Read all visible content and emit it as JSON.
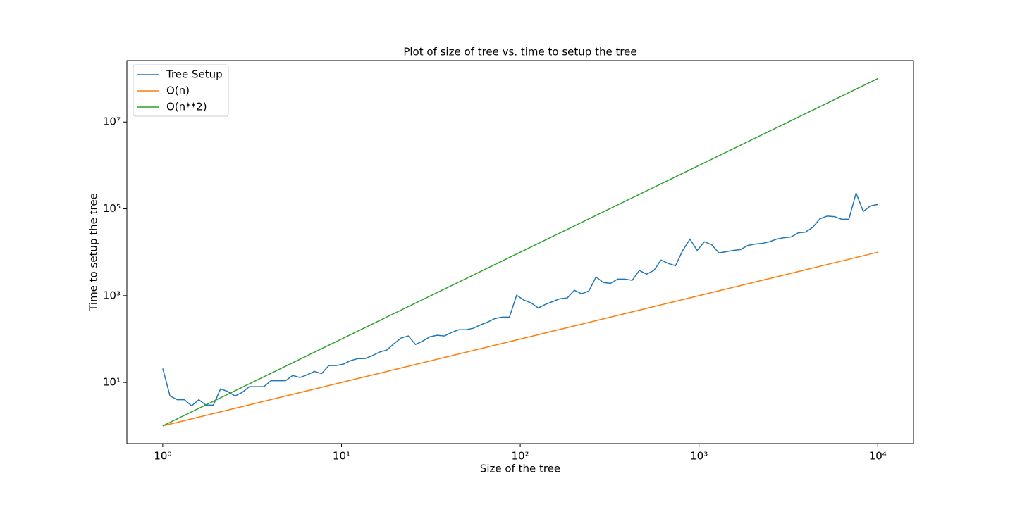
{
  "chart_data": {
    "type": "line",
    "title": "Plot of size of tree vs. time to setup the tree",
    "x_label": "Size of the tree",
    "y_label": "Time to setup the tree",
    "x_scale": "log",
    "y_scale": "log",
    "xlim": [
      0.63,
      15850
    ],
    "ylim": [
      0.39,
      260000000
    ],
    "xticks": [
      {
        "value": 1,
        "label": "10⁰"
      },
      {
        "value": 10,
        "label": "10¹"
      },
      {
        "value": 100,
        "label": "10²"
      },
      {
        "value": 1000,
        "label": "10³"
      },
      {
        "value": 10000,
        "label": "10⁴"
      }
    ],
    "yticks": [
      {
        "value": 10,
        "label": "10¹"
      },
      {
        "value": 1000,
        "label": "10³"
      },
      {
        "value": 100000,
        "label": "10⁵"
      },
      {
        "value": 10000000,
        "label": "10⁷"
      }
    ],
    "legend": "upper left",
    "series": [
      {
        "name": "Tree Setup",
        "color": "#1f77b4",
        "x": [
          1,
          1.098,
          1.205,
          1.322,
          1.451,
          1.592,
          1.748,
          1.918,
          2.105,
          2.31,
          2.535,
          2.783,
          3.054,
          3.352,
          3.678,
          4.037,
          4.431,
          4.863,
          5.337,
          5.857,
          6.428,
          7.055,
          7.743,
          8.498,
          9.326,
          10.24,
          11.23,
          12.33,
          13.53,
          14.85,
          16.3,
          17.89,
          19.63,
          21.54,
          23.64,
          25.95,
          28.48,
          31.26,
          34.3,
          37.65,
          41.32,
          45.35,
          49.77,
          54.62,
          59.95,
          65.79,
          72.21,
          79.25,
          86.98,
          95.45,
          104.8,
          115.0,
          126.2,
          138.5,
          152.0,
          166.8,
          183.1,
          200.9,
          220.5,
          242.0,
          265.6,
          291.5,
          319.9,
          351.1,
          385.3,
          422.9,
          464.2,
          509.4,
          559.1,
          613.6,
          673.4,
          739.1,
          811.1,
          890.2,
          977.0,
          1072,
          1177,
          1292,
          1418,
          1556,
          1707,
          1874,
          2057,
          2257,
          2477,
          2719,
          2984,
          3275,
          3594,
          3944,
          4329,
          4751,
          5214,
          5722,
          6280,
          6893,
          7565,
          8302,
          9113,
          10000
        ],
        "values": [
          21,
          4.9,
          4.0,
          4.0,
          2.9,
          4.0,
          3.0,
          3.0,
          7.1,
          6.2,
          4.9,
          5.9,
          8,
          8,
          8,
          11,
          11,
          11,
          14.5,
          13,
          15,
          18,
          16,
          24.5,
          24.5,
          26.4,
          31.8,
          35.5,
          35.5,
          41.3,
          50,
          55.6,
          78,
          105,
          118,
          75,
          90,
          113,
          122,
          118,
          142,
          164,
          164,
          177,
          212,
          247,
          297,
          320,
          320,
          1020,
          790,
          680,
          520,
          630,
          730,
          850,
          880,
          1330,
          1100,
          1280,
          2700,
          2000,
          1920,
          2400,
          2400,
          2250,
          3800,
          3130,
          3800,
          6600,
          5500,
          4900,
          11000,
          20000,
          11000,
          17400,
          15000,
          9600,
          10300,
          11000,
          11500,
          14300,
          15400,
          16000,
          17400,
          20000,
          21600,
          22500,
          28000,
          29000,
          37500,
          59000,
          68000,
          66000,
          57500,
          57500,
          230000,
          87000,
          117000,
          126000
        ]
      },
      {
        "name": "O(n)",
        "color": "#ff7f0e",
        "x": [
          1,
          10000
        ],
        "values": [
          1,
          10000
        ]
      },
      {
        "name": "O(n**2)",
        "color": "#2ca02c",
        "x": [
          1,
          10000
        ],
        "values": [
          1,
          100000000
        ]
      }
    ]
  }
}
